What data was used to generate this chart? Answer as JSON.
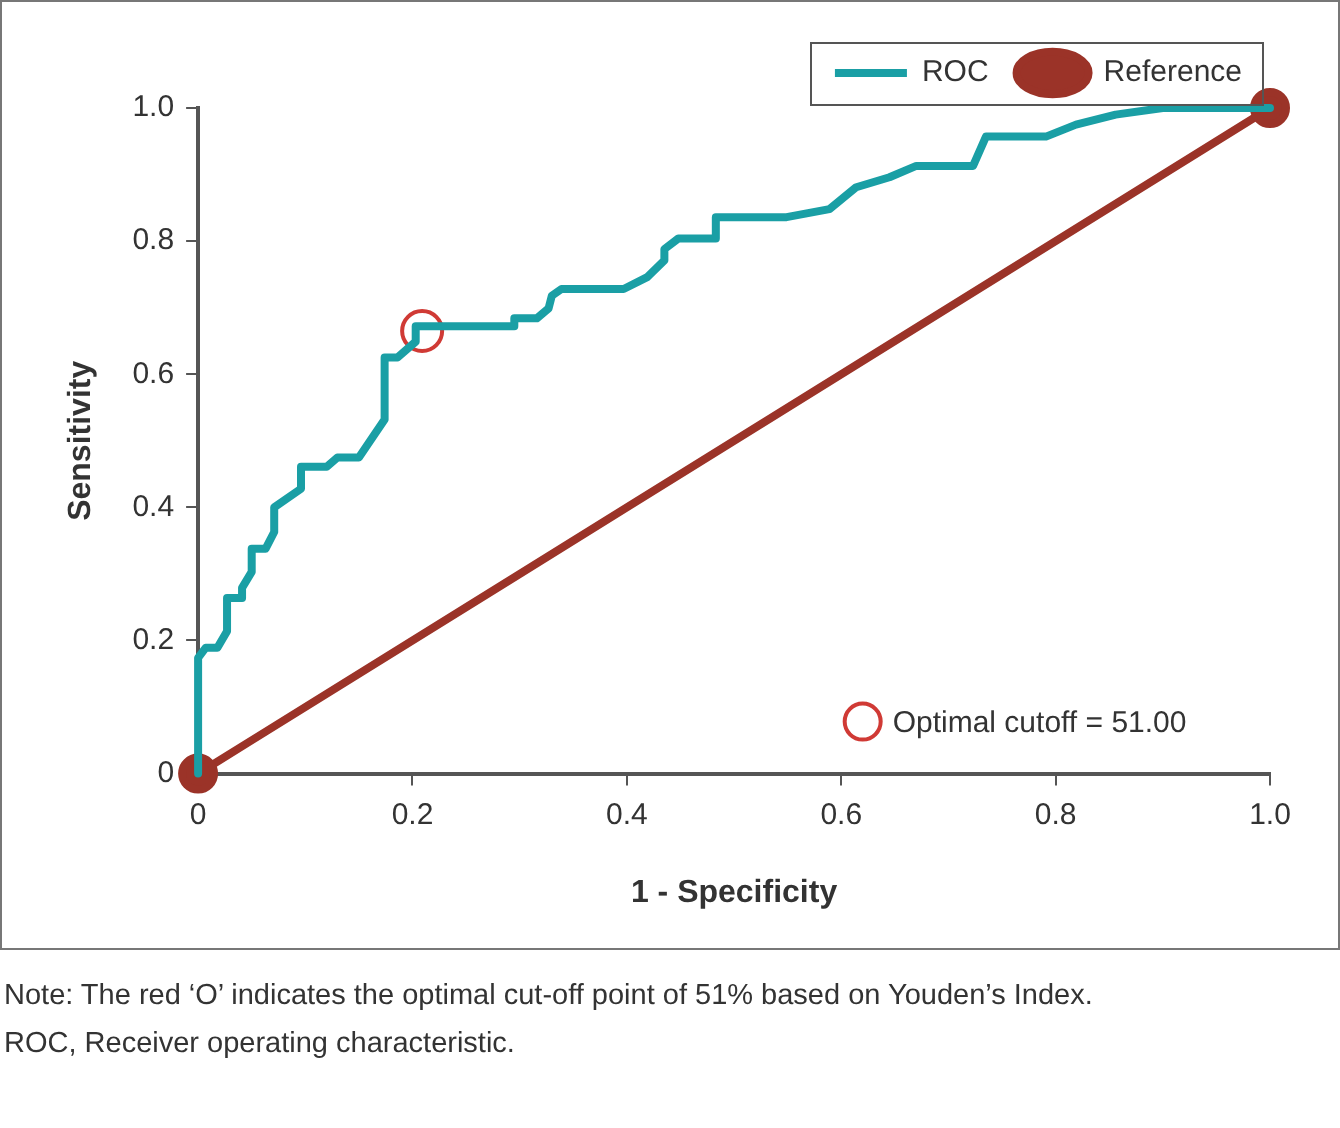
{
  "chart_data": {
    "type": "line",
    "xlabel": "1 - Specificity",
    "ylabel": "Sensitivity",
    "xlim": [
      0,
      1
    ],
    "ylim": [
      0,
      1
    ],
    "xticks": [
      0,
      0.2,
      0.4,
      0.6,
      0.8,
      {
        "value": 1,
        "label": "1.0"
      }
    ],
    "yticks": [
      0,
      0.2,
      0.4,
      0.6,
      0.8,
      {
        "value": 1,
        "label": "1.0"
      }
    ],
    "grid": false,
    "legend": "top right",
    "series": [
      {
        "name": "ROC",
        "color": "#1a9fa5",
        "marker": "none",
        "x": [
          0,
          0,
          0.007,
          0.018,
          0.027,
          0.027,
          0.041,
          0.041,
          0.05,
          0.05,
          0.063,
          0.071,
          0.071,
          0.096,
          0.096,
          0.12,
          0.13,
          0.15,
          0.174,
          0.174,
          0.186,
          0.203,
          0.203,
          0.295,
          0.295,
          0.316,
          0.327,
          0.33,
          0.339,
          0.397,
          0.419,
          0.435,
          0.435,
          0.448,
          0.483,
          0.483,
          0.549,
          0.589,
          0.614,
          0.645,
          0.67,
          0.723,
          0.735,
          0.791,
          0.819,
          0.856,
          0.9,
          1
        ],
        "values": [
          0,
          0.174,
          0.189,
          0.189,
          0.214,
          0.264,
          0.264,
          0.279,
          0.303,
          0.338,
          0.338,
          0.363,
          0.4,
          0.428,
          0.461,
          0.461,
          0.475,
          0.475,
          0.532,
          0.625,
          0.625,
          0.649,
          0.672,
          0.672,
          0.684,
          0.684,
          0.699,
          0.718,
          0.728,
          0.728,
          0.746,
          0.771,
          0.788,
          0.804,
          0.804,
          0.836,
          0.836,
          0.848,
          0.881,
          0.896,
          0.913,
          0.913,
          0.957,
          0.957,
          0.975,
          0.99,
          1,
          1
        ]
      },
      {
        "name": "Reference",
        "color": "#9b3328",
        "marker": "circle",
        "x": [
          0,
          1
        ],
        "values": [
          0,
          1
        ]
      },
      {
        "name": "Optimal cutoff = 51.00",
        "type": "scatter",
        "color": "#d03a35",
        "marker": "circle",
        "x": [
          0.209
        ],
        "values": [
          0.665
        ]
      }
    ],
    "annotations": [
      "Note: The red ‘O’ indicates the optimal cut-off point of 51% based on Youden’s Index.",
      "ROC, Receiver operating characteristic."
    ]
  }
}
